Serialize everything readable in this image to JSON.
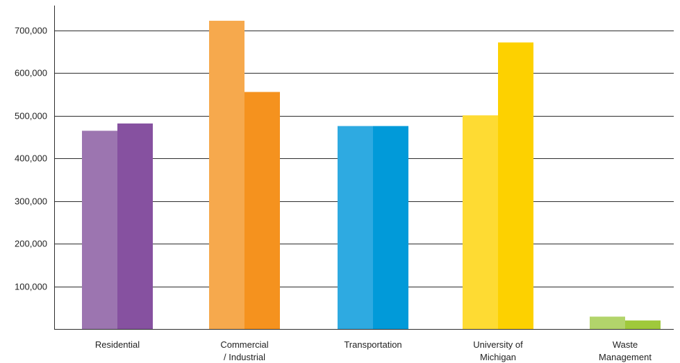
{
  "chart_data": {
    "type": "bar",
    "title": "",
    "xlabel": "",
    "ylabel": "",
    "ylim": [
      0,
      760000
    ],
    "grid": true,
    "yticks": [
      {
        "value": 100000,
        "label": "100,000"
      },
      {
        "value": 200000,
        "label": "200,000"
      },
      {
        "value": 300000,
        "label": "300,000"
      },
      {
        "value": 400000,
        "label": "400,000"
      },
      {
        "value": 500000,
        "label": "500,000"
      },
      {
        "value": 600000,
        "label": "600,000"
      },
      {
        "value": 700000,
        "label": "700,000"
      }
    ],
    "categories": [
      {
        "lines": [
          "Residential"
        ]
      },
      {
        "lines": [
          "Commercial",
          "/ Industrial"
        ]
      },
      {
        "lines": [
          "Transportation"
        ]
      },
      {
        "lines": [
          "University of",
          "Michigan"
        ]
      },
      {
        "lines": [
          "Waste",
          "Management"
        ]
      }
    ],
    "series": [
      {
        "values": [
          465000,
          723000,
          476000,
          501000,
          29000
        ]
      },
      {
        "values": [
          482000,
          556000,
          476000,
          672000,
          20000
        ]
      }
    ],
    "colors": [
      [
        "#9c75b0",
        "#8651a0"
      ],
      [
        "#f6a94d",
        "#f5921e"
      ],
      [
        "#2eaae1",
        "#019ad9"
      ],
      [
        "#fedb33",
        "#fdd100"
      ],
      [
        "#b2d46b",
        "#9fc93b"
      ]
    ]
  }
}
